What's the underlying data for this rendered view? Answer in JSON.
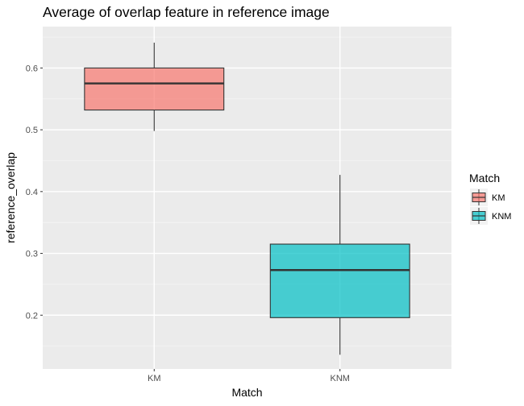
{
  "chart_data": {
    "type": "boxplot",
    "title": "Average of overlap feature in reference image",
    "xlabel": "Match",
    "ylabel": "reference_overlap",
    "categories": [
      "KM",
      "KNM"
    ],
    "ylim": [
      0.113,
      0.667
    ],
    "yticks": [
      0.2,
      0.3,
      0.4,
      0.5,
      0.6
    ],
    "ytick_labels": [
      "0.2",
      "0.3",
      "0.4",
      "0.5",
      "0.6"
    ],
    "grid": true,
    "boxes": [
      {
        "category": "KM",
        "min": 0.498,
        "q1": 0.532,
        "median": 0.575,
        "q3": 0.6,
        "max": 0.641,
        "color": "#F8766D"
      },
      {
        "category": "KNM",
        "min": 0.136,
        "q1": 0.196,
        "median": 0.273,
        "q3": 0.315,
        "max": 0.427,
        "color": "#00BFC4"
      }
    ],
    "legend": {
      "title": "Match",
      "position": "right",
      "items": [
        {
          "label": "KM",
          "color": "#F8766D"
        },
        {
          "label": "KNM",
          "color": "#00BFC4"
        }
      ]
    }
  }
}
